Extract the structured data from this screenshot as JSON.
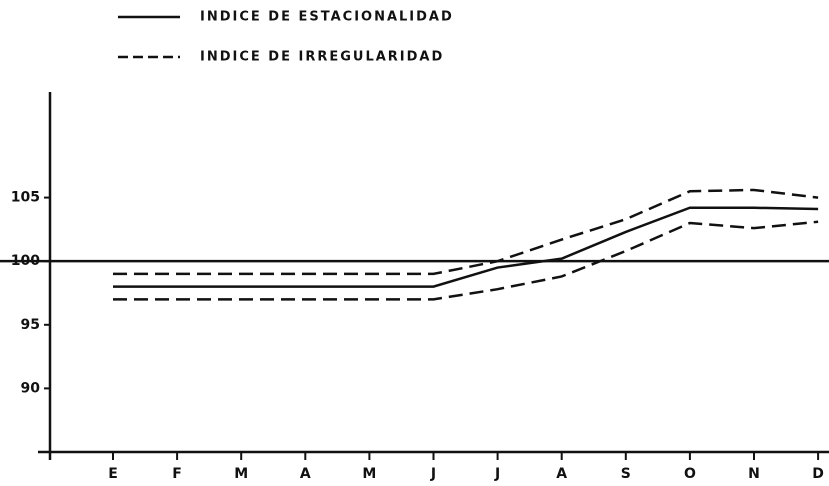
{
  "chart_data": {
    "type": "line",
    "categories": [
      "E",
      "F",
      "M",
      "A",
      "M",
      "J",
      "J",
      "A",
      "S",
      "O",
      "N",
      "D"
    ],
    "series": [
      {
        "name": "INDICE DE ESTACIONALIDAD",
        "color": "#111111",
        "style": "solid",
        "values": [
          98.0,
          98.0,
          98.0,
          98.0,
          98.0,
          98.0,
          99.5,
          100.2,
          102.3,
          104.2,
          104.2,
          104.1
        ]
      },
      {
        "name": "INDICE DE IRREGULARIDAD",
        "color": "#111111",
        "style": "dashed",
        "upper": [
          99.0,
          99.0,
          99.0,
          99.0,
          99.0,
          99.0,
          100.0,
          101.7,
          103.3,
          105.5,
          105.6,
          105.0
        ],
        "lower": [
          97.0,
          97.0,
          97.0,
          97.0,
          97.0,
          97.0,
          97.8,
          98.8,
          100.8,
          103.0,
          102.6,
          103.1
        ]
      }
    ],
    "ylim": [
      85,
      113.3
    ],
    "yticks": [
      90,
      95,
      100,
      105
    ],
    "reference_line": 100
  }
}
